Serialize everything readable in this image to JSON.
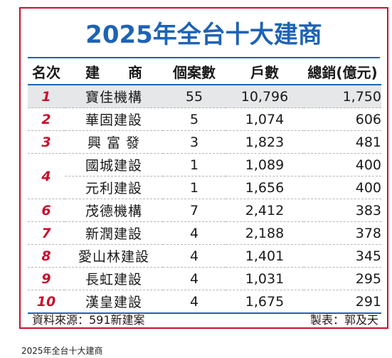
{
  "title": "2025年全台十大建商",
  "headers": {
    "rank": "名次",
    "builder": "建　　商",
    "cases": "個案數",
    "units": "戶數",
    "sales": "總銷(億元)"
  },
  "rows": [
    {
      "rank": "1",
      "name": "寶佳機構",
      "cases": "55",
      "units": "10,796",
      "sales": "1,750"
    },
    {
      "rank": "2",
      "name": "華固建設",
      "cases": "5",
      "units": "1,074",
      "sales": "606"
    },
    {
      "rank": "3",
      "name": "興 富 發",
      "cases": "3",
      "units": "1,823",
      "sales": "481"
    },
    {
      "rank": "4",
      "name": "國城建設",
      "cases": "1",
      "units": "1,089",
      "sales": "400"
    },
    {
      "rank": "",
      "name": "元利建設",
      "cases": "1",
      "units": "1,656",
      "sales": "400"
    },
    {
      "rank": "6",
      "name": "茂德機構",
      "cases": "7",
      "units": "2,412",
      "sales": "383"
    },
    {
      "rank": "7",
      "name": "新潤建設",
      "cases": "4",
      "units": "2,188",
      "sales": "378"
    },
    {
      "rank": "8",
      "name": "愛山林建設",
      "cases": "4",
      "units": "1,401",
      "sales": "345"
    },
    {
      "rank": "9",
      "name": "長虹建設",
      "cases": "4",
      "units": "1,031",
      "sales": "295"
    },
    {
      "rank": "10",
      "name": "漢皇建設",
      "cases": "4",
      "units": "1,675",
      "sales": "291"
    }
  ],
  "footer": {
    "source": "資料來源：591新建案",
    "credit": "製表：郭及天"
  },
  "caption": "2025年全台十大建商",
  "colors": {
    "frame": "#c8102e",
    "title": "#1e63b5",
    "rank": "#c8102e",
    "shade": "#e6e7e9"
  }
}
